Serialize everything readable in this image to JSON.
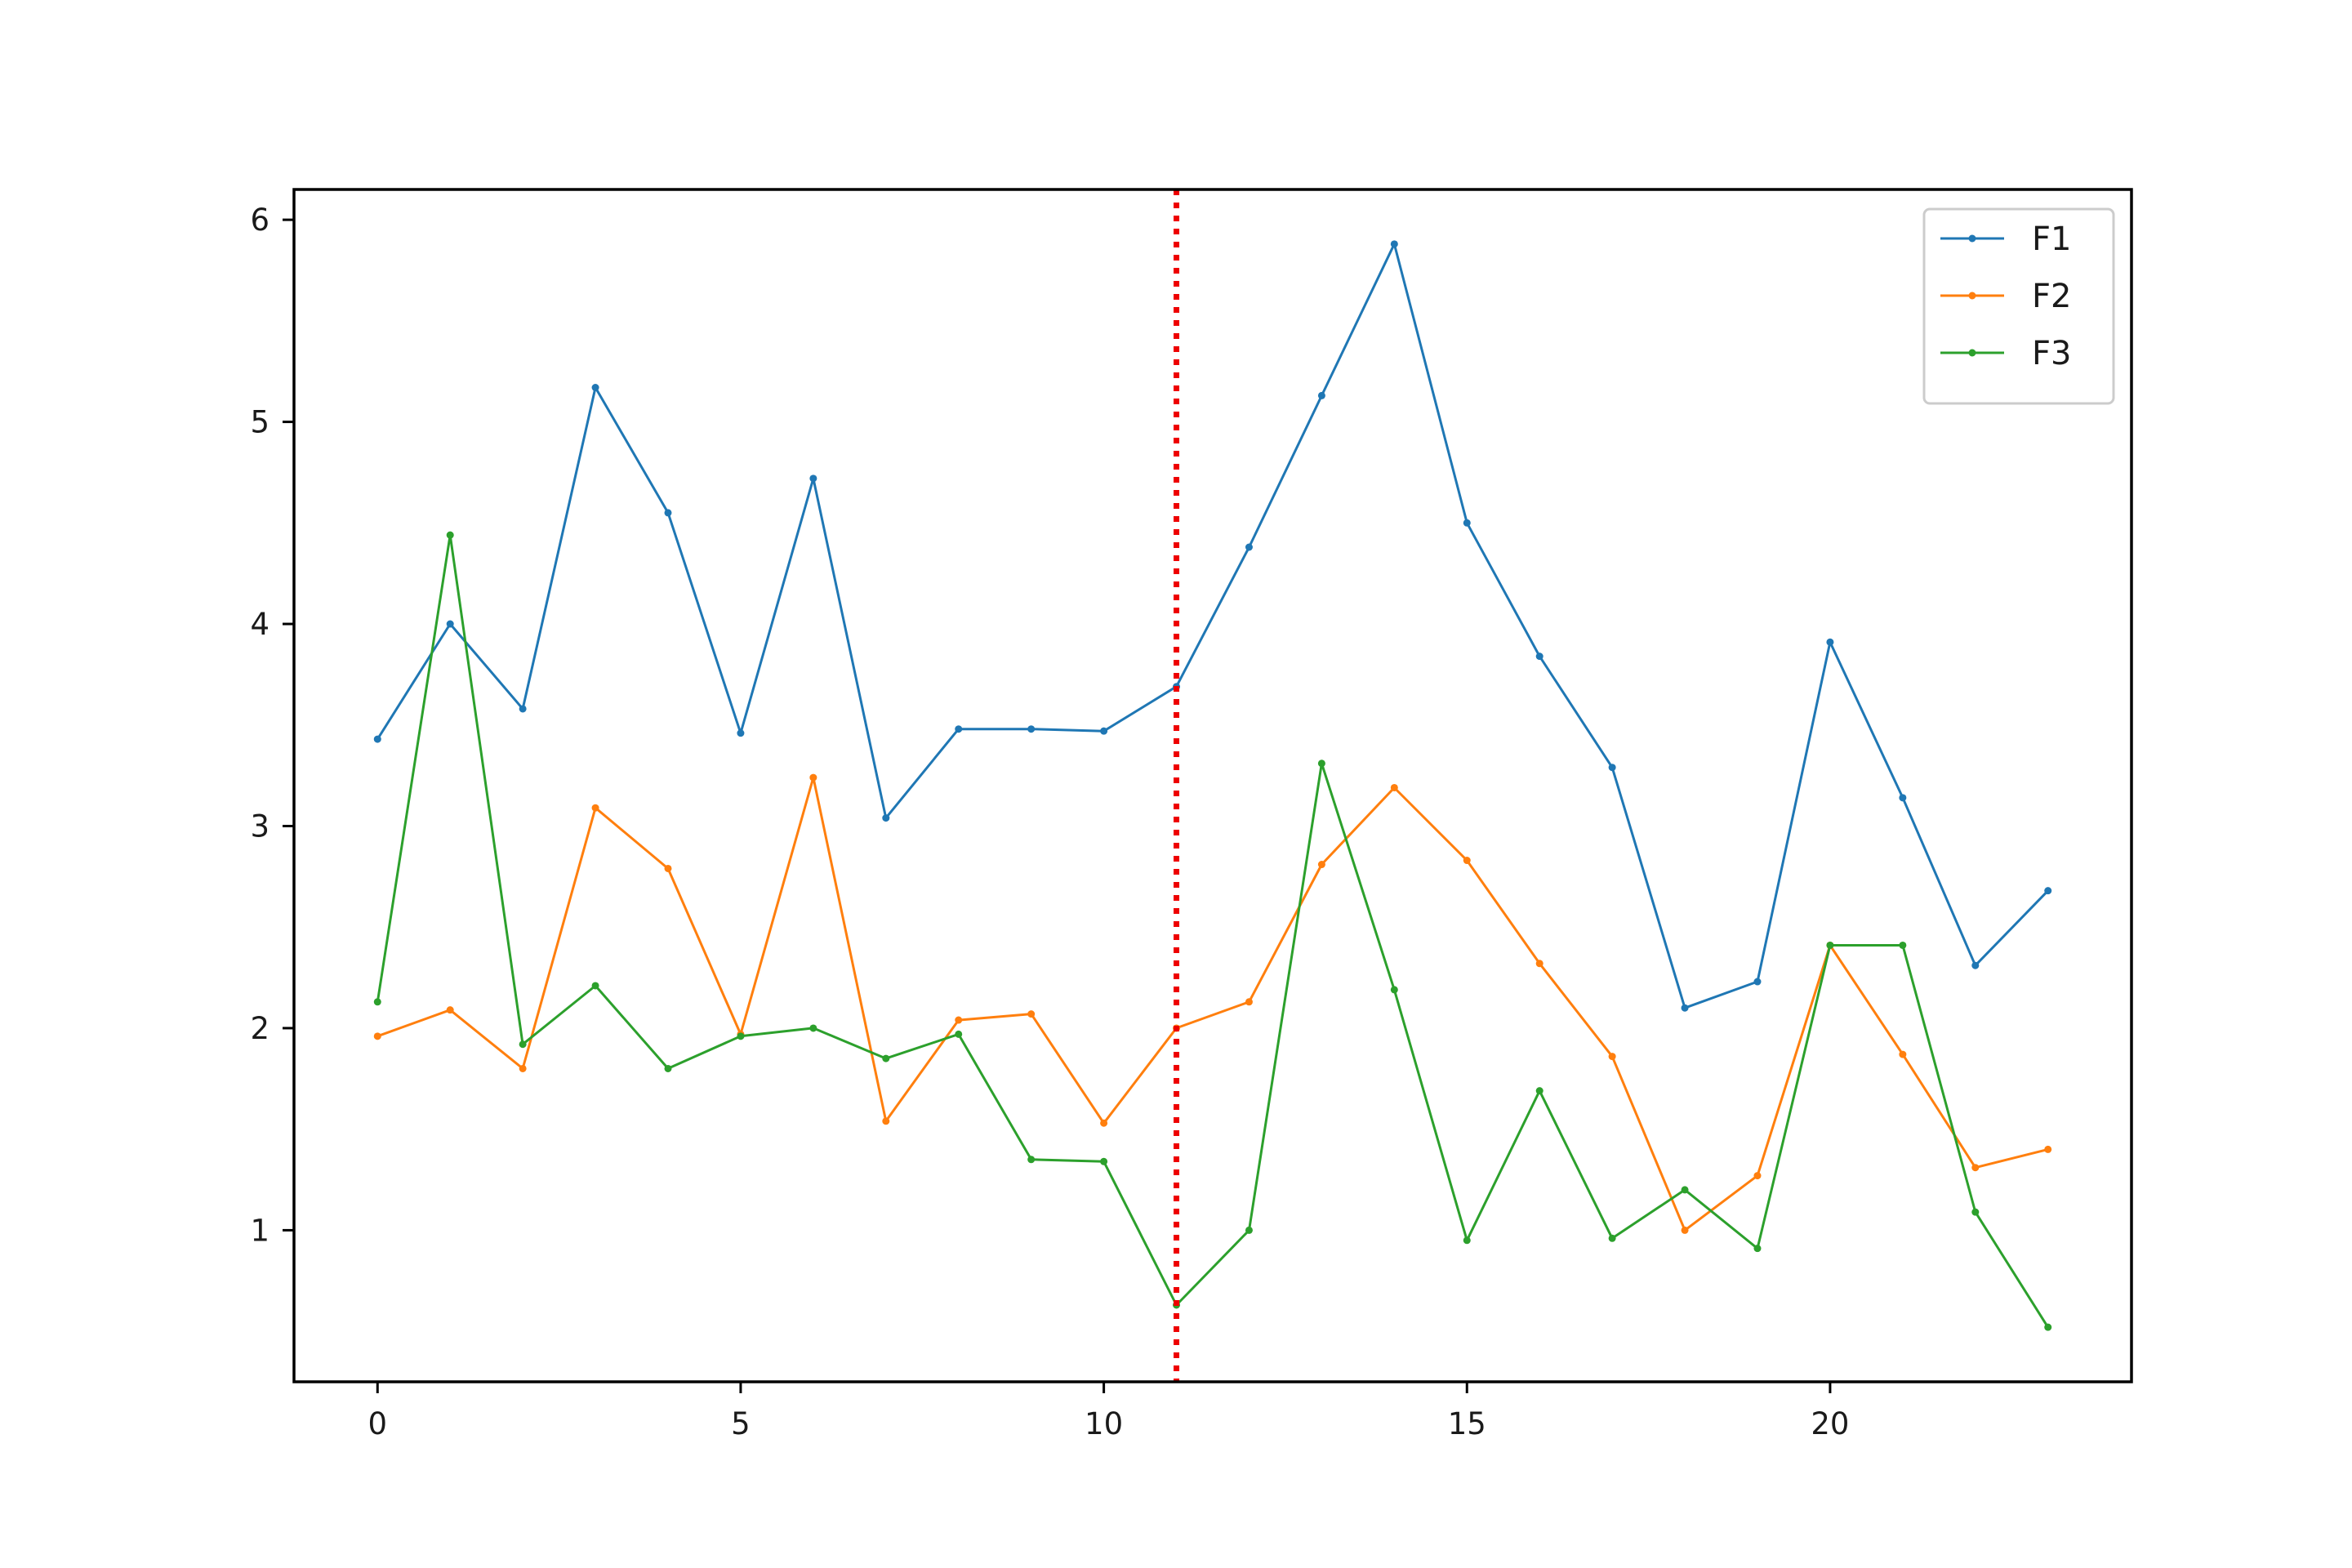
{
  "chart_data": {
    "type": "line",
    "title": "",
    "xlabel": "",
    "ylabel": "",
    "x": [
      0,
      1,
      2,
      3,
      4,
      5,
      6,
      7,
      8,
      9,
      10,
      11,
      12,
      13,
      14,
      15,
      16,
      17,
      18,
      19,
      20,
      21,
      22,
      23
    ],
    "xlim": [
      -1.15,
      24.15
    ],
    "ylim": [
      0.25,
      6.15
    ],
    "xticks": [
      0,
      5,
      10,
      15,
      20
    ],
    "yticks": [
      1,
      2,
      3,
      4,
      5,
      6
    ],
    "grid": false,
    "legend": "top-right",
    "series": [
      {
        "name": "F1",
        "color": "#1f77b4",
        "values": [
          3.43,
          4.0,
          3.58,
          5.17,
          4.55,
          3.46,
          4.72,
          3.04,
          3.48,
          3.48,
          3.47,
          3.69,
          4.38,
          5.13,
          5.88,
          4.5,
          3.84,
          3.29,
          2.1,
          2.23,
          3.91,
          3.14,
          2.31,
          2.68
        ]
      },
      {
        "name": "F2",
        "color": "#ff7f0e",
        "values": [
          1.96,
          2.09,
          1.8,
          3.09,
          2.79,
          1.97,
          3.24,
          1.54,
          2.04,
          2.07,
          1.53,
          2.0,
          2.13,
          2.81,
          3.19,
          2.83,
          2.32,
          1.86,
          1.0,
          1.27,
          2.41,
          1.87,
          1.31,
          1.4
        ]
      },
      {
        "name": "F3",
        "color": "#2ca02c",
        "values": [
          2.13,
          4.44,
          1.92,
          2.21,
          1.8,
          1.96,
          2.0,
          1.85,
          1.97,
          1.35,
          1.34,
          0.63,
          1.0,
          3.31,
          2.19,
          0.95,
          1.69,
          0.96,
          1.2,
          0.91,
          2.41,
          2.41,
          1.09,
          0.52
        ]
      }
    ],
    "annotations": [
      {
        "type": "vertical-line",
        "x": 11,
        "color": "#ee0000",
        "style": "dotted"
      }
    ]
  }
}
